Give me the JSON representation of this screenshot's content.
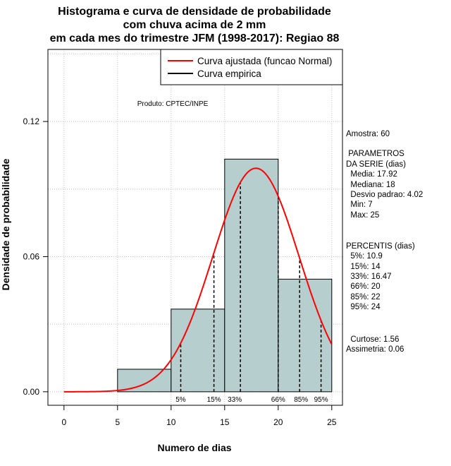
{
  "chart_data": {
    "type": "bar",
    "title": [
      "Histograma e curva de densidade de probabilidade",
      "com chuva acima de 2 mm",
      "em cada mes do trimestre JFM (1998-2017): Regiao 88"
    ],
    "xlabel": "Numero de dias",
    "ylabel": "Densidade de probabilidade",
    "xlim": [
      -1.5,
      26
    ],
    "ylim": [
      -0.006,
      0.152
    ],
    "xticks": [
      0,
      5,
      10,
      15,
      20,
      25
    ],
    "yticks": [
      0.0,
      0.06,
      0.12
    ],
    "ytick_labels": [
      "0.00",
      "0.06",
      "0.12"
    ],
    "xtick_labels": [
      "0",
      "5",
      "10",
      "15",
      "20",
      "25"
    ],
    "grid": true,
    "bins": [
      {
        "x0": 5,
        "x1": 10,
        "density": 0.01
      },
      {
        "x0": 10,
        "x1": 15,
        "density": 0.0367
      },
      {
        "x0": 15,
        "x1": 20,
        "density": 0.1033
      },
      {
        "x0": 20,
        "x1": 25,
        "density": 0.05
      }
    ],
    "normal_curve": {
      "mean": 17.92,
      "sd": 4.02,
      "x_range": [
        0,
        25
      ]
    },
    "percentiles": [
      {
        "label": "5%",
        "value": 10.9
      },
      {
        "label": "15%",
        "value": 14
      },
      {
        "label": "33%",
        "value": 16.47
      },
      {
        "label": "66%",
        "value": 20
      },
      {
        "label": "85%",
        "value": 22
      },
      {
        "label": "95%",
        "value": 24
      }
    ],
    "legend": {
      "position": "top-right",
      "entries": [
        {
          "label": "Curva ajustada (funcao Normal)",
          "color": "#ff0000"
        },
        {
          "label": "Curva empirica",
          "color": "#000000"
        }
      ]
    },
    "annotation": "Produto: CPTEC/INPE",
    "colors": {
      "bar_fill": "#b7cece",
      "curve": "#ff0000",
      "grid": "#bebebe"
    }
  },
  "stats_panel": {
    "lines": [
      "Amostra: 60",
      " PARAMETROS",
      "DA SERIE (dias)",
      "  Media: 17.92",
      "  Mediana: 18",
      "  Desvio padrao: 4.02",
      "  Min: 7",
      "  Max: 25",
      "PERCENTIS (dias)",
      "  5%: 10.9",
      "  15%: 14",
      "  33%: 16.47",
      "  66%: 20",
      "  85%: 22",
      "  95%: 24",
      "  Curtose: 1.56",
      "Assimetria: 0.06"
    ]
  }
}
